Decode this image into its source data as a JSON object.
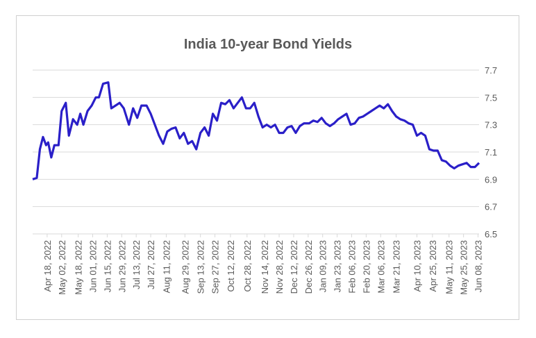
{
  "chart_data": {
    "type": "line",
    "title": "India 10-year Bond Yields",
    "x": [
      "2022-04-04",
      "2022-04-08",
      "2022-04-11",
      "2022-04-14",
      "2022-04-17",
      "2022-04-19",
      "2022-04-22",
      "2022-04-25",
      "2022-04-29",
      "2022-05-02",
      "2022-05-06",
      "2022-05-09",
      "2022-05-13",
      "2022-05-17",
      "2022-05-20",
      "2022-05-23",
      "2022-05-27",
      "2022-05-31",
      "2022-06-04",
      "2022-06-07",
      "2022-06-11",
      "2022-06-16",
      "2022-06-19",
      "2022-06-23",
      "2022-06-27",
      "2022-07-01",
      "2022-07-06",
      "2022-07-10",
      "2022-07-14",
      "2022-07-18",
      "2022-07-23",
      "2022-07-27",
      "2022-07-31",
      "2022-08-04",
      "2022-08-08",
      "2022-08-12",
      "2022-08-16",
      "2022-08-20",
      "2022-08-24",
      "2022-08-28",
      "2022-09-01",
      "2022-09-05",
      "2022-09-09",
      "2022-09-13",
      "2022-09-17",
      "2022-09-21",
      "2022-09-25",
      "2022-09-29",
      "2022-10-03",
      "2022-10-07",
      "2022-10-11",
      "2022-10-15",
      "2022-10-19",
      "2022-10-23",
      "2022-10-27",
      "2022-10-31",
      "2022-11-04",
      "2022-11-08",
      "2022-11-12",
      "2022-11-16",
      "2022-11-20",
      "2022-11-24",
      "2022-11-28",
      "2022-12-02",
      "2022-12-06",
      "2022-12-10",
      "2022-12-14",
      "2022-12-18",
      "2022-12-22",
      "2022-12-27",
      "2022-12-31",
      "2023-01-04",
      "2023-01-08",
      "2023-01-12",
      "2023-01-16",
      "2023-01-20",
      "2023-01-24",
      "2023-01-28",
      "2023-02-01",
      "2023-02-05",
      "2023-02-09",
      "2023-02-13",
      "2023-02-17",
      "2023-02-21",
      "2023-02-25",
      "2023-03-01",
      "2023-03-05",
      "2023-03-09",
      "2023-03-13",
      "2023-03-17",
      "2023-03-21",
      "2023-03-25",
      "2023-03-29",
      "2023-04-02",
      "2023-04-06",
      "2023-04-10",
      "2023-04-14",
      "2023-04-18",
      "2023-04-22",
      "2023-04-26",
      "2023-04-30",
      "2023-05-04",
      "2023-05-08",
      "2023-05-12",
      "2023-05-16",
      "2023-05-20",
      "2023-05-24",
      "2023-05-28",
      "2023-06-01",
      "2023-06-05",
      "2023-06-09"
    ],
    "series": [
      {
        "name": "India 10-year",
        "color": "#2a1fc8",
        "values": [
          6.9,
          6.91,
          7.12,
          7.21,
          7.15,
          7.17,
          7.06,
          7.15,
          7.15,
          7.4,
          7.46,
          7.22,
          7.34,
          7.3,
          7.38,
          7.3,
          7.4,
          7.44,
          7.5,
          7.5,
          7.6,
          7.61,
          7.42,
          7.44,
          7.46,
          7.42,
          7.3,
          7.42,
          7.35,
          7.44,
          7.44,
          7.38,
          7.3,
          7.22,
          7.16,
          7.25,
          7.27,
          7.28,
          7.2,
          7.24,
          7.16,
          7.18,
          7.12,
          7.24,
          7.28,
          7.22,
          7.38,
          7.33,
          7.46,
          7.45,
          7.48,
          7.42,
          7.46,
          7.5,
          7.42,
          7.42,
          7.46,
          7.36,
          7.28,
          7.3,
          7.28,
          7.3,
          7.24,
          7.24,
          7.28,
          7.29,
          7.24,
          7.29,
          7.31,
          7.31,
          7.33,
          7.32,
          7.35,
          7.31,
          7.29,
          7.31,
          7.34,
          7.36,
          7.38,
          7.3,
          7.31,
          7.35,
          7.36,
          7.38,
          7.4,
          7.42,
          7.44,
          7.42,
          7.45,
          7.4,
          7.36,
          7.34,
          7.33,
          7.31,
          7.3,
          7.22,
          7.24,
          7.22,
          7.12,
          7.11,
          7.11,
          7.04,
          7.03,
          7.0,
          6.98,
          7.0,
          7.01,
          7.02,
          6.99,
          6.99,
          7.02
        ]
      }
    ],
    "xlim": [
      "2022-04-04",
      "2023-06-09"
    ],
    "xticks": [
      {
        "value": "2022-04-18",
        "label": "Apr 18, 2022"
      },
      {
        "value": "2022-05-02",
        "label": "May 02, 2022"
      },
      {
        "value": "2022-05-18",
        "label": "May 18, 2022"
      },
      {
        "value": "2022-06-01",
        "label": "Jun 01, 2022"
      },
      {
        "value": "2022-06-15",
        "label": "Jun 15, 2022"
      },
      {
        "value": "2022-06-29",
        "label": "Jun 29, 2022"
      },
      {
        "value": "2022-07-13",
        "label": "Jul 13, 2022"
      },
      {
        "value": "2022-07-27",
        "label": "Jul 27, 2022"
      },
      {
        "value": "2022-08-11",
        "label": "Aug 11, 2022"
      },
      {
        "value": "2022-08-29",
        "label": "Aug 29, 2022"
      },
      {
        "value": "2022-09-13",
        "label": "Sep 13, 2022"
      },
      {
        "value": "2022-09-27",
        "label": "Sep 27, 2022"
      },
      {
        "value": "2022-10-12",
        "label": "Oct 12, 2022"
      },
      {
        "value": "2022-10-28",
        "label": "Oct 28, 2022"
      },
      {
        "value": "2022-11-14",
        "label": "Nov 14, 2022"
      },
      {
        "value": "2022-11-28",
        "label": "Nov 28, 2022"
      },
      {
        "value": "2022-12-12",
        "label": "Dec 12, 2022"
      },
      {
        "value": "2022-12-26",
        "label": "Dec 26, 2022"
      },
      {
        "value": "2023-01-09",
        "label": "Jan 09, 2023"
      },
      {
        "value": "2023-01-23",
        "label": "Jan 23, 2023"
      },
      {
        "value": "2023-02-06",
        "label": "Feb 06, 2023"
      },
      {
        "value": "2023-02-20",
        "label": "Feb 20, 2023"
      },
      {
        "value": "2023-03-06",
        "label": "Mar 06, 2023"
      },
      {
        "value": "2023-03-21",
        "label": "Mar 21, 2023"
      },
      {
        "value": "2023-04-10",
        "label": "Apr 10, 2023"
      },
      {
        "value": "2023-04-25",
        "label": "Apr 25, 2023"
      },
      {
        "value": "2023-05-11",
        "label": "May 11, 2023"
      },
      {
        "value": "2023-05-25",
        "label": "May 25, 2023"
      },
      {
        "value": "2023-06-08",
        "label": "Jun 08, 2023"
      }
    ],
    "ylim": [
      6.5,
      7.7
    ],
    "yticks": [
      6.5,
      6.7,
      6.9,
      7.1,
      7.3,
      7.5,
      7.7
    ],
    "grid": true
  }
}
